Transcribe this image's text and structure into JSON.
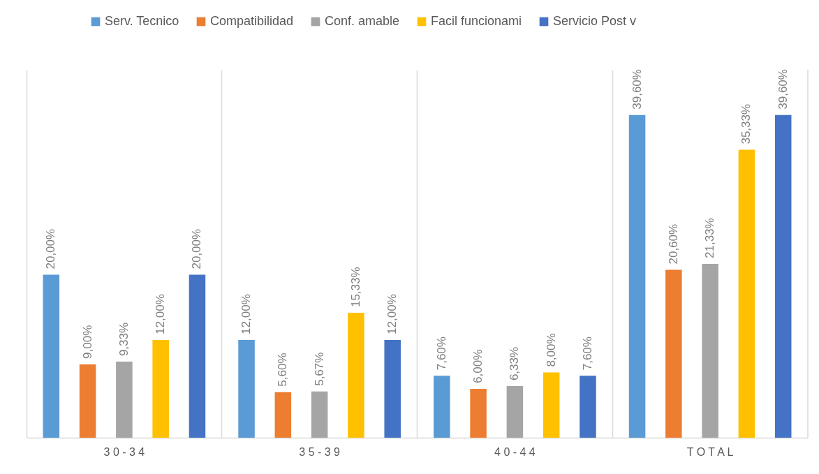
{
  "chart_data": {
    "type": "bar",
    "categories": [
      "3 0 - 3 4",
      "3 5 - 3 9",
      "4 0 - 4 4",
      "T O T A L"
    ],
    "series": [
      {
        "name": "Serv. Tecnico",
        "color": "#5b9bd5",
        "values": [
          20.0,
          12.0,
          7.6,
          39.6
        ],
        "value_labels": [
          "20,00%",
          "12,00%",
          "7,60%",
          "39,60%"
        ]
      },
      {
        "name": "Compatibilidad",
        "color": "#ed7d31",
        "values": [
          9.0,
          5.6,
          6.0,
          20.6
        ],
        "value_labels": [
          "9,00%",
          "5,60%",
          "6,00%",
          "20,60%"
        ]
      },
      {
        "name": "Conf. amable",
        "color": "#a5a5a5",
        "values": [
          9.33,
          5.67,
          6.33,
          21.33
        ],
        "value_labels": [
          "9,33%",
          "5,67%",
          "6,33%",
          "21,33%"
        ]
      },
      {
        "name": "Facil funcionami",
        "color": "#ffc000",
        "values": [
          12.0,
          15.33,
          8.0,
          35.33
        ],
        "value_labels": [
          "12,00%",
          "15,33%",
          "8,00%",
          "35,33%"
        ]
      },
      {
        "name": "Servicio Post v",
        "color": "#4472c4",
        "values": [
          20.0,
          12.0,
          7.6,
          39.6
        ],
        "value_labels": [
          "20,00%",
          "12,00%",
          "7,60%",
          "39,60%"
        ]
      }
    ],
    "grid": "x",
    "legend": "top"
  }
}
